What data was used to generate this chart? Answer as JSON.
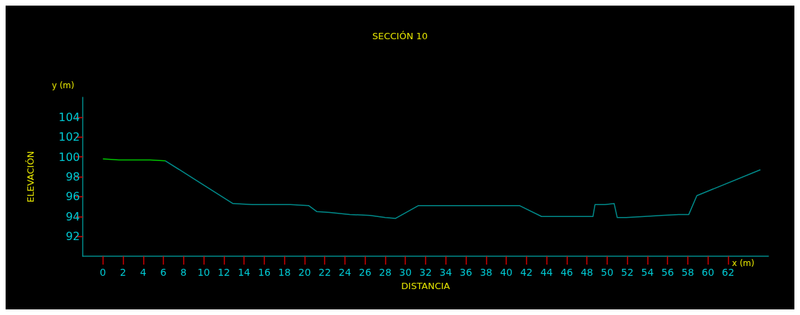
{
  "chart_data": {
    "type": "line",
    "title": "SECCIÓN 10",
    "xlabel": "DISTANCIA",
    "ylabel": "ELEVACIÓN",
    "annotations": [
      "y (m)",
      "x (m)"
    ],
    "xlim": [
      -2,
      66
    ],
    "xticks": [
      0,
      2,
      4,
      6,
      8,
      10,
      12,
      14,
      16,
      18,
      20,
      22,
      24,
      26,
      28,
      30,
      32,
      34,
      36,
      38,
      40,
      42,
      44,
      46,
      48,
      50,
      52,
      54,
      56,
      58,
      60,
      62
    ],
    "ylim": [
      90,
      106
    ],
    "yticks": [
      92,
      94,
      96,
      98,
      100,
      102,
      104
    ],
    "grid": false,
    "marker": "none",
    "line_style": "solid",
    "series": [
      {
        "color": "#00c800",
        "x": [
          0,
          1.6,
          4.7,
          6.2
        ],
        "values": [
          99.8,
          99.7,
          99.7,
          99.6
        ]
      },
      {
        "color": "#008c8c",
        "x": [
          6.2,
          12.9,
          14.8,
          18.6,
          20.4,
          21.2,
          22.5,
          24.5,
          26.5,
          28,
          29,
          31.3,
          41.3,
          43.5,
          48.6,
          48.8,
          49.8,
          50.7,
          51,
          51.9,
          53.7,
          55.4,
          57.1,
          58.1,
          58.9,
          65.2
        ],
        "values": [
          99.6,
          95.3,
          95.2,
          95.2,
          95.1,
          94.5,
          94.4,
          94.2,
          94.1,
          93.9,
          93.8,
          95.1,
          95.1,
          94,
          94,
          95.2,
          95.2,
          95.3,
          93.9,
          93.9,
          94,
          94.1,
          94.2,
          94.2,
          96.1,
          98.7
        ]
      }
    ]
  }
}
